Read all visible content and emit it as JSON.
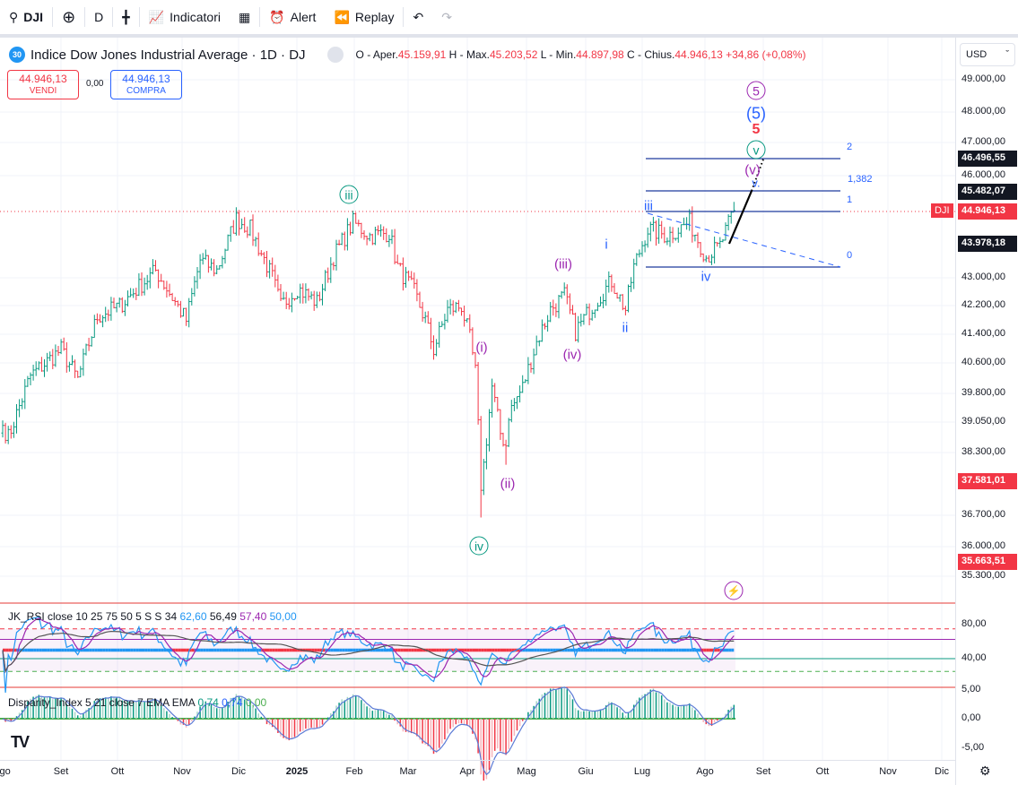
{
  "toolbar": {
    "symbol": "DJI",
    "interval": "D",
    "indicators": "Indicatori",
    "alert": "Alert",
    "replay": "Replay"
  },
  "legend": {
    "badge": "30",
    "title": "Indice Dow Jones Industrial Average · 1D · DJ",
    "o_label": "O - Aper.",
    "o": "45.159,91",
    "h_label": "H - Max.",
    "h": "45.203,52",
    "l_label": "L - Min.",
    "l": "44.897,98",
    "c_label": "C - Chius.",
    "c": "44.946,13",
    "change": "+34,86 (+0,08%)"
  },
  "trade": {
    "sell_price": "44.946,13",
    "sell_label": "VENDI",
    "spread": "0,00",
    "buy_price": "44.946,13",
    "buy_label": "COMPRA"
  },
  "currency": "USD",
  "price_axis": [
    "49.000,00",
    "48.000,00",
    "47.000,00",
    "46.000,00",
    "43.000,00",
    "42.200,00",
    "41.400,00",
    "40.600,00",
    "39.800,00",
    "39.050,00",
    "38.300,00",
    "36.700,00",
    "36.000,00",
    "35.300,00"
  ],
  "price_tags": {
    "t1": "46.496,55",
    "t2": "45.482,07",
    "sym": "DJI",
    "last": "44.946,13",
    "t3": "43.978,18",
    "t4": "37.581,01",
    "t5": "35.663,51"
  },
  "waves": {
    "c5": "5",
    "p5": "(5)",
    "r5": "5",
    "cv": "v",
    "pv": "(v)",
    "bv": "v.",
    "iii": "iii",
    "iv": "iv",
    "i": "i",
    "ii": "ii",
    "piii": "(iii)",
    "piv": "(iv)",
    "pi": "(i)",
    "pii": "(ii)",
    "ciii": "iii",
    "civ": "iv"
  },
  "fib": {
    "f2": "2",
    "f1382": "1,382",
    "f1": "1",
    "f0": "0"
  },
  "rsi": {
    "title": "JK_RSI close 10 25 75 50 5 S S 34",
    "v1": "62,60",
    "v2": "56,49",
    "v3": "57,40",
    "v4": "50,00",
    "axis": [
      "80,00",
      "40,00"
    ]
  },
  "disparity": {
    "title": "Disparity_Index 5 21 close 7 EMA EMA",
    "v1": "0,74",
    "v2": "0,74",
    "v3": "0,00",
    "axis": [
      "5,00",
      "0,00",
      "-5,00"
    ]
  },
  "time_axis": [
    "Ago",
    "Set",
    "Ott",
    "Nov",
    "Dic",
    "2025",
    "Feb",
    "Mar",
    "Apr",
    "Mag",
    "Giu",
    "Lug",
    "Ago",
    "Set",
    "Ott",
    "Nov",
    "Dic"
  ],
  "colors": {
    "up": "#089981",
    "down": "#f23645",
    "wave_blue": "#2962ff",
    "wave_purple": "#9c27b0",
    "wave_green": "#089981"
  },
  "chart_data": {
    "type": "ohlc",
    "scale": "log",
    "note": "approx close path, [trading_day_index, price]",
    "close_waypoints": [
      [
        0,
        39000
      ],
      [
        2,
        38700
      ],
      [
        10,
        40300
      ],
      [
        21,
        41000
      ],
      [
        27,
        40200
      ],
      [
        34,
        41900
      ],
      [
        42,
        42200
      ],
      [
        55,
        43200
      ],
      [
        66,
        41800
      ],
      [
        71,
        43500
      ],
      [
        77,
        43200
      ],
      [
        84,
        44700
      ],
      [
        89,
        44400
      ],
      [
        97,
        43000
      ],
      [
        100,
        42200
      ],
      [
        106,
        42700
      ],
      [
        113,
        42300
      ],
      [
        119,
        43600
      ],
      [
        126,
        44600
      ],
      [
        132,
        44200
      ],
      [
        139,
        44300
      ],
      [
        142,
        43300
      ],
      [
        148,
        42600
      ],
      [
        152,
        41800
      ],
      [
        155,
        41000
      ],
      [
        160,
        42100
      ],
      [
        165,
        42200
      ],
      [
        168,
        41300
      ],
      [
        170,
        40400
      ],
      [
        172,
        37500
      ],
      [
        173,
        38000
      ],
      [
        176,
        40000
      ],
      [
        179,
        38800
      ],
      [
        181,
        38500
      ],
      [
        182,
        39300
      ],
      [
        187,
        40000
      ],
      [
        192,
        41200
      ],
      [
        197,
        42100
      ],
      [
        202,
        42500
      ],
      [
        206,
        41500
      ],
      [
        213,
        42300
      ],
      [
        219,
        42900
      ],
      [
        224,
        42100
      ],
      [
        227,
        43300
      ],
      [
        232,
        44400
      ],
      [
        239,
        44200
      ],
      [
        247,
        44600
      ],
      [
        253,
        43600
      ],
      [
        258,
        43900
      ],
      [
        263,
        44946
      ]
    ]
  }
}
